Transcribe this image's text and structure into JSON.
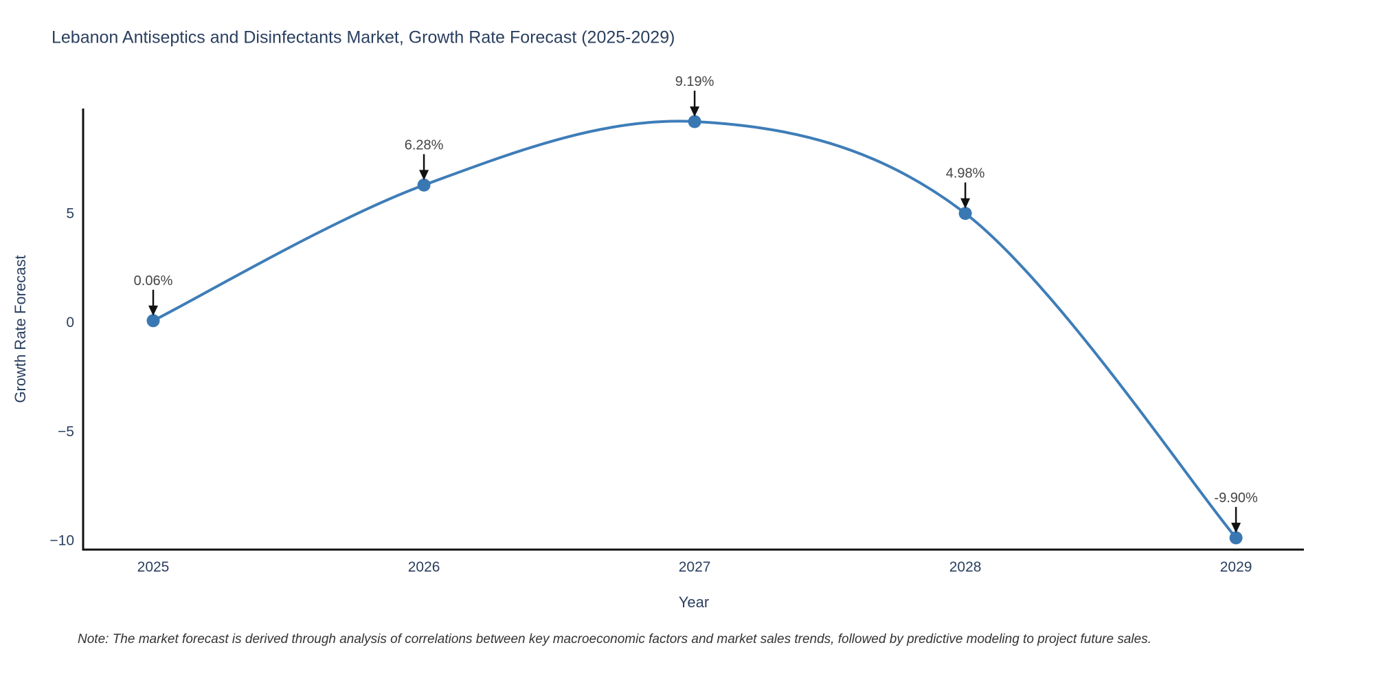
{
  "title": "Lebanon Antiseptics and Disinfectants Market, Growth Rate Forecast (2025-2029)",
  "note": "Note: The market forecast is derived through analysis of correlations between key macroeconomic factors and market sales trends, followed by predictive modeling to project future sales.",
  "chart_data": {
    "type": "line",
    "title": "Lebanon Antiseptics and Disinfectants Market, Growth Rate Forecast (2025-2029)",
    "xlabel": "Year",
    "ylabel": "Growth Rate Forecast",
    "x": [
      2025,
      2026,
      2027,
      2028,
      2029
    ],
    "values": [
      0.06,
      6.28,
      9.19,
      4.98,
      -9.9
    ],
    "point_labels": [
      "0.06%",
      "6.28%",
      "9.19%",
      "4.98%",
      "-9.90%"
    ],
    "x_tick_labels": [
      "2025",
      "2026",
      "2027",
      "2028",
      "2029"
    ],
    "y_ticks": [
      {
        "value": 5,
        "label": "5"
      },
      {
        "value": 0,
        "label": "0"
      },
      {
        "value": -5,
        "label": "−5"
      },
      {
        "value": -10,
        "label": "−10"
      }
    ],
    "xlim": [
      2024.741,
      2029.251
    ],
    "ylim": [
      -10.44,
      9.79
    ],
    "line_shape": "spline",
    "grid": false,
    "legend_position": "none",
    "annotations_have_arrows": true,
    "colors": {
      "line": "#3e7db8",
      "marker": "#3a78b4",
      "axis": "#101010",
      "title_text": "#2a3f5f",
      "tick_text": "#2a3f5f",
      "annotation_text": "#444444",
      "arrow": "#111111",
      "note_text": "#333333"
    }
  }
}
